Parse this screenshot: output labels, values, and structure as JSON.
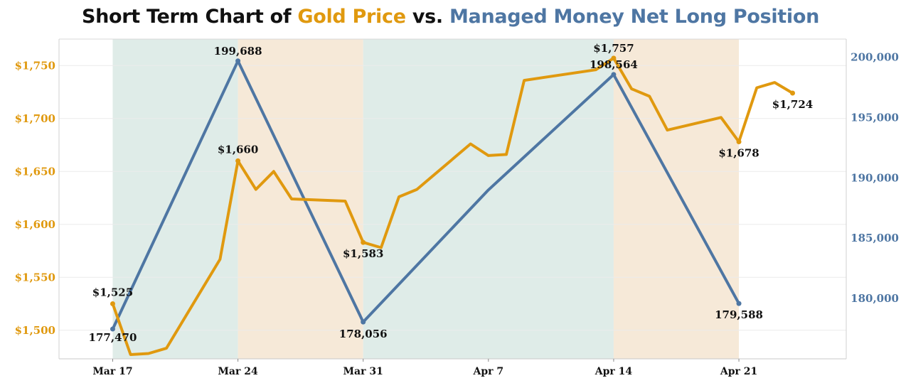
{
  "title": {
    "part1": "Short Term Chart of ",
    "part2": "Gold Price",
    "part3": " vs. ",
    "part4": "Managed Money Net Long Position"
  },
  "colors": {
    "gold": "#E0990F",
    "managed_money": "#4E76A3",
    "band_green": "#DFECE8",
    "band_tan": "#F6E9D8",
    "title_text": "#111111"
  },
  "chart_data": {
    "type": "line",
    "title": "Short Term Chart of Gold Price vs. Managed Money Net Long Position",
    "x_axis": {
      "type": "date",
      "ticks": [
        "2020-03-17",
        "2020-03-24",
        "2020-03-31",
        "2020-04-07",
        "2020-04-14",
        "2020-04-21"
      ],
      "tick_labels": [
        "Mar 17",
        "Mar 24",
        "Mar 31",
        "Apr 7",
        "Apr 14",
        "Apr 21"
      ],
      "range": [
        "2020-03-14",
        "2020-04-27"
      ]
    },
    "y_left": {
      "ylim": [
        1473,
        1775
      ],
      "ticks": [
        1500,
        1550,
        1600,
        1650,
        1700,
        1750
      ],
      "tick_labels": [
        "$1,500",
        "$1,550",
        "$1,600",
        "$1,650",
        "$1,700",
        "$1,750"
      ]
    },
    "y_right": {
      "ylim": [
        175000,
        201500
      ],
      "ticks": [
        180000,
        185000,
        190000,
        195000,
        200000
      ],
      "tick_labels": [
        "180,000",
        "185,000",
        "190,000",
        "195,000",
        "200,000"
      ]
    },
    "grid": true,
    "bands": [
      {
        "start": "2020-03-17",
        "end": "2020-03-24",
        "color": "green"
      },
      {
        "start": "2020-03-24",
        "end": "2020-03-31",
        "color": "tan"
      },
      {
        "start": "2020-03-31",
        "end": "2020-04-14",
        "color": "green"
      },
      {
        "start": "2020-04-14",
        "end": "2020-04-21",
        "color": "tan"
      }
    ],
    "series": [
      {
        "name": "Gold Price",
        "axis": "left",
        "points": [
          {
            "x": "2020-03-17",
            "y": 1525,
            "label": "$1,525"
          },
          {
            "x": "2020-03-18",
            "y": 1477
          },
          {
            "x": "2020-03-19",
            "y": 1478
          },
          {
            "x": "2020-03-20",
            "y": 1483
          },
          {
            "x": "2020-03-23",
            "y": 1567
          },
          {
            "x": "2020-03-24",
            "y": 1660,
            "label": "$1,660"
          },
          {
            "x": "2020-03-25",
            "y": 1633
          },
          {
            "x": "2020-03-26",
            "y": 1650
          },
          {
            "x": "2020-03-27",
            "y": 1624
          },
          {
            "x": "2020-03-30",
            "y": 1622
          },
          {
            "x": "2020-03-31",
            "y": 1583,
            "label": "$1,583"
          },
          {
            "x": "2020-04-01",
            "y": 1578
          },
          {
            "x": "2020-04-02",
            "y": 1626
          },
          {
            "x": "2020-04-03",
            "y": 1633
          },
          {
            "x": "2020-04-06",
            "y": 1676
          },
          {
            "x": "2020-04-07",
            "y": 1665
          },
          {
            "x": "2020-04-08",
            "y": 1666
          },
          {
            "x": "2020-04-09",
            "y": 1736
          },
          {
            "x": "2020-04-13",
            "y": 1746
          },
          {
            "x": "2020-04-14",
            "y": 1757,
            "label": "$1,757"
          },
          {
            "x": "2020-04-15",
            "y": 1728
          },
          {
            "x": "2020-04-16",
            "y": 1721
          },
          {
            "x": "2020-04-17",
            "y": 1689
          },
          {
            "x": "2020-04-20",
            "y": 1701
          },
          {
            "x": "2020-04-21",
            "y": 1678,
            "label": "$1,678"
          },
          {
            "x": "2020-04-22",
            "y": 1729
          },
          {
            "x": "2020-04-23",
            "y": 1734
          },
          {
            "x": "2020-04-24",
            "y": 1724,
            "label": "$1,724"
          }
        ]
      },
      {
        "name": "Managed Money Net Long Position",
        "axis": "right",
        "points": [
          {
            "x": "2020-03-17",
            "y": 177470,
            "label": "177,470"
          },
          {
            "x": "2020-03-24",
            "y": 199688,
            "label": "199,688"
          },
          {
            "x": "2020-03-31",
            "y": 178056,
            "label": "178,056"
          },
          {
            "x": "2020-04-07",
            "y": 189000
          },
          {
            "x": "2020-04-14",
            "y": 198564,
            "label": "198,564"
          },
          {
            "x": "2020-04-21",
            "y": 179588,
            "label": "179,588"
          }
        ]
      }
    ]
  }
}
